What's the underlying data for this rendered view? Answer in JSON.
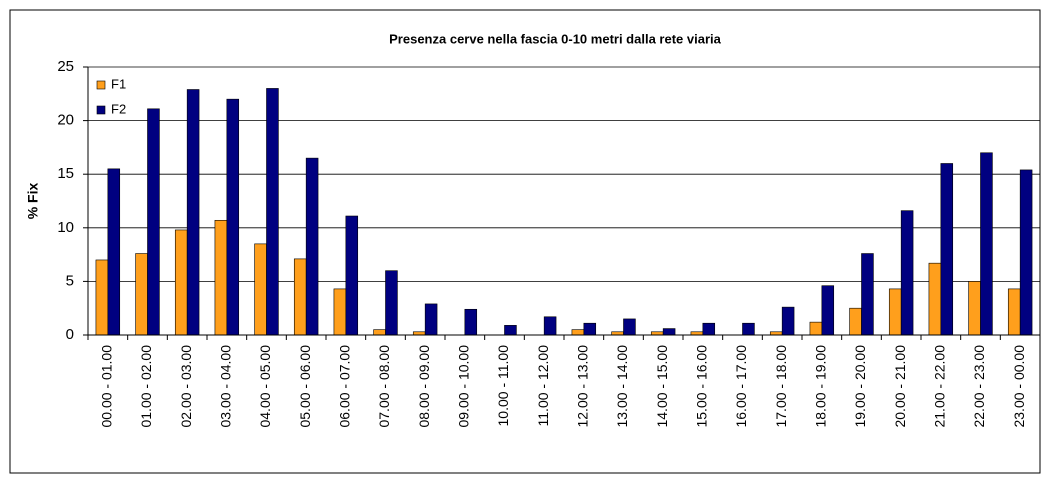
{
  "chart_data": {
    "type": "bar",
    "title": "Presenza cerve nella fascia 0-10 metri dalla rete viaria",
    "y_label": "% Fix",
    "categories": [
      "00.00 - 01.00",
      "01.00 - 02.00",
      "02.00 - 03.00",
      "03.00 - 04.00",
      "04.00 - 05.00",
      "05.00 - 06.00",
      "06.00 - 07.00",
      "07.00 - 08.00",
      "08.00 - 09.00",
      "09.00 - 10.00",
      "10.00 - 11.00",
      "11.00 - 12.00",
      "12.00 - 13.00",
      "13.00 - 14.00",
      "14.00 - 15.00",
      "15.00 - 16.00",
      "16.00 - 17.00",
      "17.00 - 18.00",
      "18.00 - 19.00",
      "19.00 - 20.00",
      "20.00 - 21.00",
      "21.00 - 22.00",
      "22.00 - 23.00",
      "23.00 - 00.00"
    ],
    "series": [
      {
        "name": "F1",
        "color": "#ff9f1c",
        "values": [
          7,
          7.6,
          9.8,
          10.7,
          8.5,
          7.1,
          4.3,
          0.5,
          0.3,
          0,
          0,
          0,
          0.5,
          0.3,
          0.3,
          0.3,
          0,
          0.3,
          1.2,
          2.5,
          4.3,
          6.7,
          5,
          4.3
        ]
      },
      {
        "name": "F2",
        "color": "#000080",
        "values": [
          15.5,
          21.1,
          22.9,
          22,
          23,
          16.5,
          11.1,
          6,
          2.9,
          2.4,
          0.9,
          1.7,
          1.1,
          1.5,
          0.6,
          1.1,
          1.1,
          2.6,
          4.6,
          7.6,
          11.6,
          16,
          17,
          15.4
        ]
      }
    ],
    "ylim": [
      0,
      25
    ],
    "yticks": [
      0,
      5,
      10,
      15,
      20,
      25
    ],
    "grid": true,
    "legend": "top-left"
  }
}
